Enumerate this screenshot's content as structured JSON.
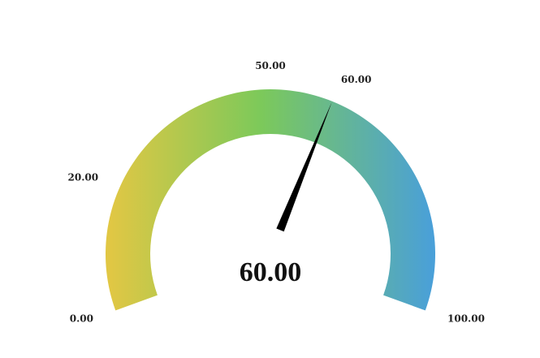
{
  "chart_data": {
    "type": "gauge",
    "min": 0,
    "max": 100,
    "value": 60,
    "value_label": "60.00",
    "tick_labels": [
      {
        "value": 0,
        "label": "0.00"
      },
      {
        "value": 20,
        "label": "20.00"
      },
      {
        "value": 50,
        "label": "50.00"
      },
      {
        "value": 60,
        "label": "60.00"
      },
      {
        "value": 100,
        "label": "100.00"
      }
    ],
    "gradient_colors": [
      "#e1c744",
      "#7cc95a",
      "#4aa0d8"
    ],
    "needle_color": "#000000"
  }
}
